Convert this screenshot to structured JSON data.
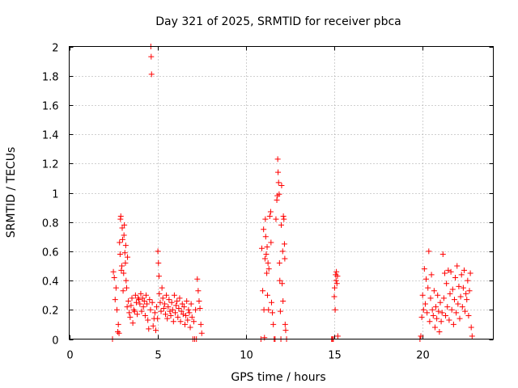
{
  "chart_data": {
    "type": "scatter",
    "title": "Day 321 of 2025, SRMTID for receiver pbca",
    "xlabel": "GPS time / hours",
    "ylabel": "SRMTID / TECUs",
    "xlim": [
      0,
      24
    ],
    "ylim": [
      0,
      2
    ],
    "xticks": [
      0,
      5,
      10,
      15,
      20
    ],
    "xtick_labels": [
      "0",
      "5",
      "10",
      "15",
      "20"
    ],
    "yticks": [
      0,
      0.2,
      0.4,
      0.6,
      0.8,
      1,
      1.2,
      1.4,
      1.6,
      1.8,
      2
    ],
    "ytick_labels": [
      "0",
      "0.2",
      "0.4",
      "0.6",
      "0.8",
      "1",
      "1.2",
      "1.4",
      "1.6",
      "1.8",
      "2"
    ],
    "grid": true,
    "marker": "+",
    "color": "#ff0000",
    "series": [
      {
        "name": "SRMTID",
        "points": [
          [
            2.45,
            0.0
          ],
          [
            2.5,
            0.46
          ],
          [
            2.55,
            0.42
          ],
          [
            2.6,
            0.27
          ],
          [
            2.65,
            0.35
          ],
          [
            2.7,
            0.2
          ],
          [
            2.75,
            0.05
          ],
          [
            2.78,
            0.1
          ],
          [
            2.82,
            0.04
          ],
          [
            2.85,
            0.66
          ],
          [
            2.88,
            0.58
          ],
          [
            2.9,
            0.82
          ],
          [
            2.92,
            0.84
          ],
          [
            2.95,
            0.47
          ],
          [
            2.98,
            0.5
          ],
          [
            3.0,
            0.76
          ],
          [
            3.02,
            0.68
          ],
          [
            3.05,
            0.33
          ],
          [
            3.08,
            0.45
          ],
          [
            3.1,
            0.71
          ],
          [
            3.12,
            0.78
          ],
          [
            3.15,
            0.59
          ],
          [
            3.18,
            0.52
          ],
          [
            3.2,
            0.64
          ],
          [
            3.22,
            0.4
          ],
          [
            3.25,
            0.35
          ],
          [
            3.28,
            0.22
          ],
          [
            3.3,
            0.56
          ],
          [
            3.35,
            0.26
          ],
          [
            3.4,
            0.18
          ],
          [
            3.45,
            0.15
          ],
          [
            3.5,
            0.23
          ],
          [
            3.55,
            0.28
          ],
          [
            3.6,
            0.11
          ],
          [
            3.65,
            0.2
          ],
          [
            3.7,
            0.19
          ],
          [
            3.75,
            0.3
          ],
          [
            3.8,
            0.25
          ],
          [
            3.85,
            0.17
          ],
          [
            3.9,
            0.28
          ],
          [
            3.95,
            0.27
          ],
          [
            4.0,
            0.24
          ],
          [
            4.05,
            0.31
          ],
          [
            4.1,
            0.19
          ],
          [
            4.15,
            0.28
          ],
          [
            4.2,
            0.22
          ],
          [
            4.25,
            0.26
          ],
          [
            4.3,
            0.16
          ],
          [
            4.35,
            0.3
          ],
          [
            4.4,
            0.24
          ],
          [
            4.45,
            0.13
          ],
          [
            4.5,
            0.07
          ],
          [
            4.55,
            0.27
          ],
          [
            4.6,
            0.2
          ],
          [
            4.62,
            2.0
          ],
          [
            4.64,
            1.93
          ],
          [
            4.66,
            1.81
          ],
          [
            4.7,
            0.25
          ],
          [
            4.75,
            0.09
          ],
          [
            4.8,
            0.14
          ],
          [
            4.85,
            0.18
          ],
          [
            4.9,
            0.06
          ],
          [
            4.95,
            0.22
          ],
          [
            5.0,
            0.14
          ],
          [
            5.02,
            0.6
          ],
          [
            5.05,
            0.52
          ],
          [
            5.08,
            0.43
          ],
          [
            5.1,
            0.31
          ],
          [
            5.15,
            0.25
          ],
          [
            5.2,
            0.19
          ],
          [
            5.25,
            0.35
          ],
          [
            5.3,
            0.28
          ],
          [
            5.35,
            0.21
          ],
          [
            5.4,
            0.24
          ],
          [
            5.45,
            0.17
          ],
          [
            5.5,
            0.3
          ],
          [
            5.55,
            0.14
          ],
          [
            5.6,
            0.22
          ],
          [
            5.65,
            0.27
          ],
          [
            5.7,
            0.19
          ],
          [
            5.75,
            0.16
          ],
          [
            5.8,
            0.25
          ],
          [
            5.85,
            0.2
          ],
          [
            5.9,
            0.12
          ],
          [
            5.95,
            0.3
          ],
          [
            6.0,
            0.18
          ],
          [
            6.05,
            0.23
          ],
          [
            6.1,
            0.26
          ],
          [
            6.15,
            0.15
          ],
          [
            6.2,
            0.21
          ],
          [
            6.25,
            0.28
          ],
          [
            6.3,
            0.12
          ],
          [
            6.35,
            0.19
          ],
          [
            6.4,
            0.24
          ],
          [
            6.45,
            0.17
          ],
          [
            6.5,
            0.22
          ],
          [
            6.55,
            0.1
          ],
          [
            6.6,
            0.16
          ],
          [
            6.65,
            0.26
          ],
          [
            6.7,
            0.13
          ],
          [
            6.75,
            0.2
          ],
          [
            6.8,
            0.18
          ],
          [
            6.85,
            0.08
          ],
          [
            6.9,
            0.24
          ],
          [
            6.95,
            0.15
          ],
          [
            7.0,
            0.0
          ],
          [
            7.05,
            0.12
          ],
          [
            7.1,
            0.0
          ],
          [
            7.15,
            0.2
          ],
          [
            7.2,
            0.0
          ],
          [
            7.25,
            0.41
          ],
          [
            7.3,
            0.33
          ],
          [
            7.35,
            0.26
          ],
          [
            7.4,
            0.21
          ],
          [
            7.45,
            0.1
          ],
          [
            7.5,
            0.04
          ],
          [
            10.85,
            0.0
          ],
          [
            10.9,
            0.62
          ],
          [
            10.95,
            0.33
          ],
          [
            11.0,
            0.75
          ],
          [
            11.02,
            0.2
          ],
          [
            11.05,
            0.01
          ],
          [
            11.08,
            0.55
          ],
          [
            11.1,
            0.82
          ],
          [
            11.12,
            0.7
          ],
          [
            11.15,
            0.58
          ],
          [
            11.18,
            0.45
          ],
          [
            11.2,
            0.63
          ],
          [
            11.22,
            0.3
          ],
          [
            11.25,
            0.52
          ],
          [
            11.28,
            0.2
          ],
          [
            11.3,
            0.48
          ],
          [
            11.35,
            0.84
          ],
          [
            11.4,
            0.87
          ],
          [
            11.42,
            0.66
          ],
          [
            11.45,
            0.25
          ],
          [
            11.5,
            0.18
          ],
          [
            11.55,
            0.1
          ],
          [
            11.6,
            0.0
          ],
          [
            11.65,
            0.0
          ],
          [
            11.7,
            0.82
          ],
          [
            11.75,
            0.95
          ],
          [
            11.78,
            0.98
          ],
          [
            11.8,
            1.23
          ],
          [
            11.82,
            1.14
          ],
          [
            11.85,
            1.07
          ],
          [
            11.88,
            0.99
          ],
          [
            11.9,
            0.52
          ],
          [
            11.92,
            0.4
          ],
          [
            11.95,
            0.19
          ],
          [
            11.98,
            0.0
          ],
          [
            12.0,
            0.78
          ],
          [
            12.02,
            1.05
          ],
          [
            12.05,
            0.38
          ],
          [
            12.08,
            0.6
          ],
          [
            12.1,
            0.26
          ],
          [
            12.12,
            0.84
          ],
          [
            12.15,
            0.82
          ],
          [
            12.18,
            0.65
          ],
          [
            12.2,
            0.55
          ],
          [
            12.22,
            0.1
          ],
          [
            12.25,
            0.06
          ],
          [
            12.3,
            0.0
          ],
          [
            14.85,
            0.0
          ],
          [
            14.9,
            0.0
          ],
          [
            14.95,
            0.0
          ],
          [
            15.0,
            0.29
          ],
          [
            15.02,
            0.35
          ],
          [
            15.05,
            0.2
          ],
          [
            15.08,
            0.44
          ],
          [
            15.1,
            0.4
          ],
          [
            15.12,
            0.46
          ],
          [
            15.15,
            0.38
          ],
          [
            15.18,
            0.43
          ],
          [
            15.2,
            0.02
          ],
          [
            19.85,
            0.0
          ],
          [
            19.9,
            0.02
          ],
          [
            19.95,
            0.15
          ],
          [
            20.0,
            0.3
          ],
          [
            20.05,
            0.2
          ],
          [
            20.1,
            0.48
          ],
          [
            20.15,
            0.24
          ],
          [
            20.2,
            0.41
          ],
          [
            20.25,
            0.18
          ],
          [
            20.3,
            0.35
          ],
          [
            20.35,
            0.6
          ],
          [
            20.4,
            0.12
          ],
          [
            20.45,
            0.28
          ],
          [
            20.5,
            0.44
          ],
          [
            20.55,
            0.2
          ],
          [
            20.6,
            0.16
          ],
          [
            20.65,
            0.33
          ],
          [
            20.7,
            0.08
          ],
          [
            20.75,
            0.22
          ],
          [
            20.8,
            0.14
          ],
          [
            20.85,
            0.3
          ],
          [
            20.9,
            0.19
          ],
          [
            20.95,
            0.05
          ],
          [
            21.0,
            0.25
          ],
          [
            21.05,
            0.12
          ],
          [
            21.1,
            0.18
          ],
          [
            21.15,
            0.58
          ],
          [
            21.2,
            0.28
          ],
          [
            21.25,
            0.45
          ],
          [
            21.3,
            0.16
          ],
          [
            21.35,
            0.38
          ],
          [
            21.4,
            0.22
          ],
          [
            21.45,
            0.47
          ],
          [
            21.5,
            0.13
          ],
          [
            21.55,
            0.31
          ],
          [
            21.6,
            0.46
          ],
          [
            21.65,
            0.2
          ],
          [
            21.7,
            0.34
          ],
          [
            21.75,
            0.1
          ],
          [
            21.8,
            0.27
          ],
          [
            21.85,
            0.42
          ],
          [
            21.9,
            0.18
          ],
          [
            21.95,
            0.5
          ],
          [
            22.0,
            0.24
          ],
          [
            22.05,
            0.36
          ],
          [
            22.1,
            0.14
          ],
          [
            22.15,
            0.29
          ],
          [
            22.2,
            0.44
          ],
          [
            22.25,
            0.22
          ],
          [
            22.3,
            0.35
          ],
          [
            22.35,
            0.47
          ],
          [
            22.4,
            0.19
          ],
          [
            22.45,
            0.31
          ],
          [
            22.5,
            0.27
          ],
          [
            22.55,
            0.4
          ],
          [
            22.6,
            0.16
          ],
          [
            22.65,
            0.33
          ],
          [
            22.7,
            0.45
          ],
          [
            22.75,
            0.08
          ],
          [
            22.8,
            0.02
          ]
        ]
      }
    ]
  }
}
